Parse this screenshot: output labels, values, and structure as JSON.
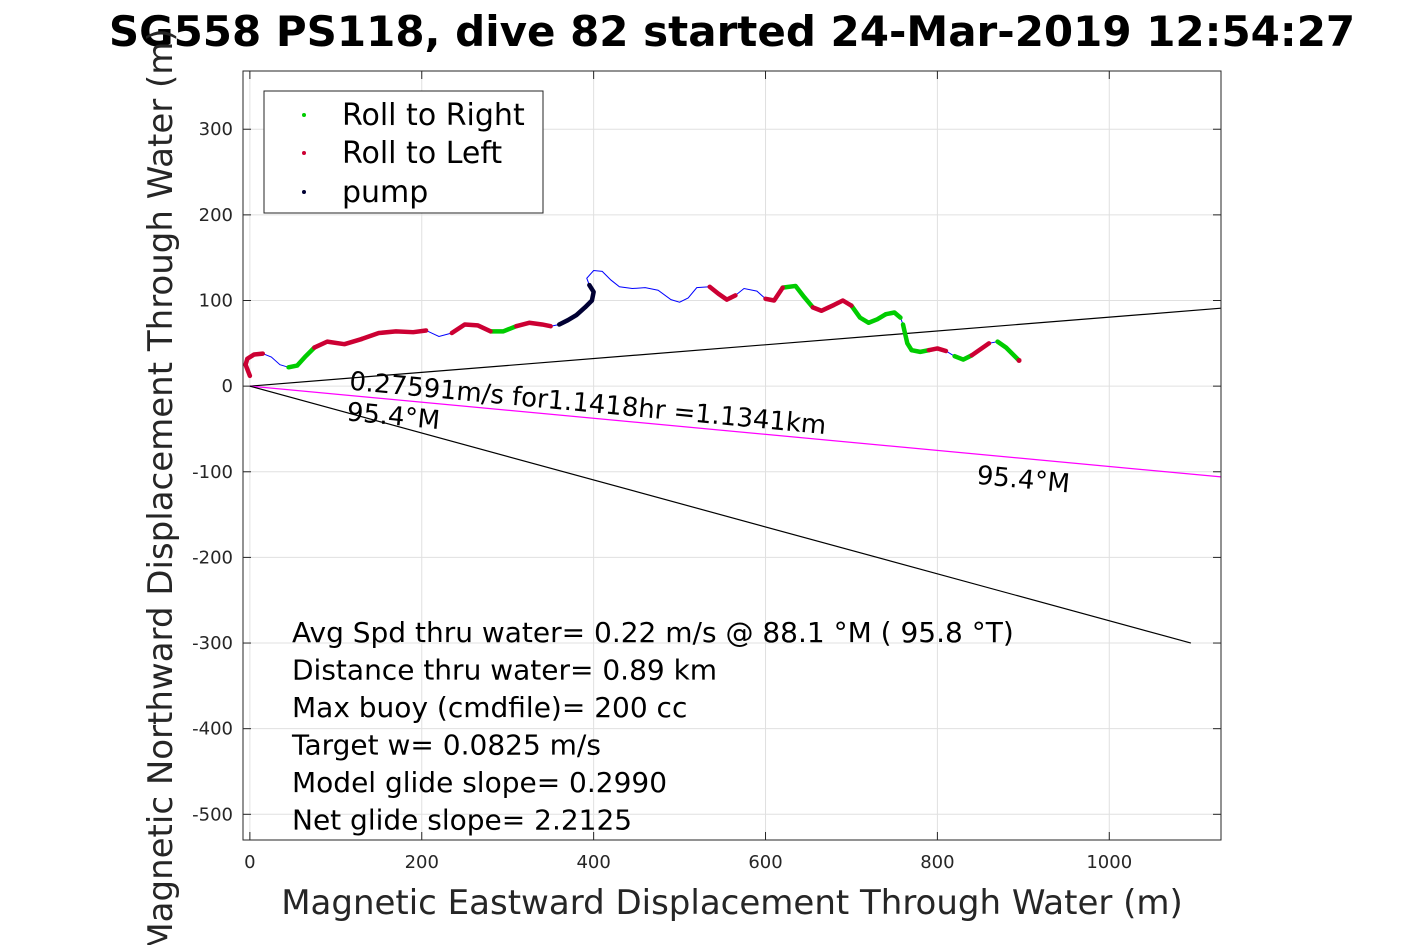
{
  "chart_data": {
    "type": "scatter",
    "title": "SG558 PS118, dive 82 started 24-Mar-2019 12:54:27",
    "xlabel": "Magnetic Eastward Displacement Through Water (m)",
    "ylabel": "Magnetic Northward Displacement Through Water (m)",
    "xlim": [
      -8,
      1130
    ],
    "ylim": [
      -530,
      368
    ],
    "xticks": [
      0,
      200,
      400,
      600,
      800,
      1000
    ],
    "yticks": [
      300,
      200,
      100,
      0,
      -100,
      -200,
      -300,
      -400,
      -500
    ],
    "grid": true,
    "legend_position": "top-left",
    "colors": {
      "roll_right": "#00cc00",
      "roll_left": "#cc0033",
      "pump": "#000033",
      "track": "#0000ff",
      "current": "#ff00ff",
      "bearing": "#000000"
    },
    "legend": [
      "Roll to Right",
      "Roll to Left",
      "pump"
    ],
    "track": [
      [
        0,
        12
      ],
      [
        -5,
        25
      ],
      [
        -3,
        32
      ],
      [
        5,
        37
      ],
      [
        15,
        38
      ],
      [
        25,
        34
      ],
      [
        35,
        25
      ],
      [
        45,
        22
      ],
      [
        55,
        24
      ],
      [
        65,
        35
      ],
      [
        75,
        45
      ],
      [
        90,
        52
      ],
      [
        110,
        49
      ],
      [
        130,
        55
      ],
      [
        150,
        62
      ],
      [
        170,
        64
      ],
      [
        190,
        63
      ],
      [
        205,
        65
      ],
      [
        220,
        58
      ],
      [
        235,
        62
      ],
      [
        250,
        72
      ],
      [
        265,
        71
      ],
      [
        280,
        64
      ],
      [
        295,
        64
      ],
      [
        310,
        70
      ],
      [
        325,
        74
      ],
      [
        340,
        72
      ],
      [
        350,
        70
      ],
      [
        360,
        72
      ],
      [
        370,
        77
      ],
      [
        380,
        83
      ],
      [
        390,
        92
      ],
      [
        398,
        100
      ],
      [
        400,
        110
      ],
      [
        395,
        118
      ],
      [
        392,
        126
      ],
      [
        400,
        135
      ],
      [
        410,
        134
      ],
      [
        420,
        124
      ],
      [
        430,
        116
      ],
      [
        445,
        114
      ],
      [
        460,
        115
      ],
      [
        475,
        112
      ],
      [
        490,
        101
      ],
      [
        500,
        98
      ],
      [
        510,
        103
      ],
      [
        520,
        115
      ],
      [
        535,
        116
      ],
      [
        545,
        108
      ],
      [
        555,
        101
      ],
      [
        565,
        106
      ],
      [
        575,
        114
      ],
      [
        590,
        111
      ],
      [
        600,
        102
      ],
      [
        610,
        100
      ],
      [
        620,
        115
      ],
      [
        635,
        117
      ],
      [
        645,
        104
      ],
      [
        655,
        92
      ],
      [
        665,
        88
      ],
      [
        680,
        95
      ],
      [
        690,
        100
      ],
      [
        700,
        94
      ],
      [
        710,
        80
      ],
      [
        720,
        74
      ],
      [
        730,
        78
      ],
      [
        740,
        84
      ],
      [
        750,
        86
      ],
      [
        757,
        80
      ],
      [
        760,
        72
      ],
      [
        762,
        63
      ],
      [
        765,
        50
      ],
      [
        770,
        42
      ],
      [
        780,
        40
      ],
      [
        790,
        42
      ],
      [
        800,
        44
      ],
      [
        810,
        41
      ],
      [
        820,
        35
      ],
      [
        830,
        31
      ],
      [
        840,
        36
      ],
      [
        850,
        43
      ],
      [
        860,
        50
      ],
      [
        870,
        52
      ],
      [
        880,
        45
      ],
      [
        895,
        30
      ]
    ],
    "roll_right_segments": [
      [
        7,
        10
      ],
      [
        22,
        24
      ],
      [
        55,
        58
      ],
      [
        62,
        66
      ],
      [
        66,
        68
      ],
      [
        69,
        72
      ],
      [
        72,
        74
      ],
      [
        77,
        79
      ],
      [
        82,
        85
      ]
    ],
    "roll_left_segments": [
      [
        0,
        4
      ],
      [
        10,
        13
      ],
      [
        13,
        17
      ],
      [
        19,
        22
      ],
      [
        24,
        27
      ],
      [
        47,
        50
      ],
      [
        53,
        55
      ],
      [
        58,
        62
      ],
      [
        74,
        76
      ],
      [
        79,
        81
      ]
    ],
    "pump_segments": [
      [
        28,
        34
      ]
    ],
    "lines": [
      {
        "name": "bearing-upper",
        "from": [
          0,
          0
        ],
        "to": [
          1130,
          91
        ]
      },
      {
        "name": "current",
        "from": [
          0,
          0
        ],
        "to": [
          1130,
          -106
        ]
      },
      {
        "name": "bearing-lower",
        "from": [
          0,
          0
        ],
        "to": [
          1095,
          -300
        ]
      }
    ],
    "annotations": {
      "current_text": "0.27591m/s for1.1418hr =1.1341km",
      "heading_start": "95.4°M",
      "heading_end": "95.4°M"
    },
    "stats": [
      "Avg Spd thru water=  0.22 m/s @  88.1 °M ( 95.8 °T)",
      "Distance thru water=  0.89 km",
      "Max buoy (cmdfile)= 200 cc",
      "Target w= 0.0825 m/s",
      "Model glide slope= 0.2990",
      "Net glide slope= 2.2125"
    ]
  }
}
